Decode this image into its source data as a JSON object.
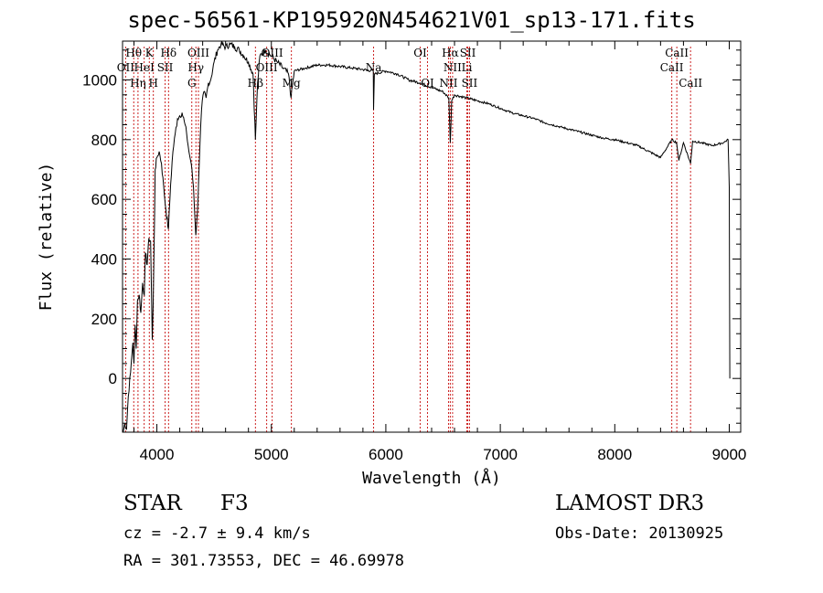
{
  "title": "spec-56561-KP195920N454621V01_sp13-171.fits",
  "info": {
    "class": "STAR",
    "subclass": "F3",
    "survey": "LAMOST DR3",
    "cz": "cz = -2.7 ± 9.4 km/s",
    "obs_date": "Obs-Date: 20130925",
    "radec": "RA = 301.73553, DEC =  46.69978"
  },
  "colors": {
    "spectrum": "#000000",
    "lines": "#cc2222",
    "axes": "#000000"
  },
  "chart_data": {
    "type": "line",
    "title": "spec-56561-KP195920N454621V01_sp13-171.fits",
    "xlabel": "Wavelength (Å)",
    "ylabel": "Flux (relative)",
    "xlim": [
      3700,
      9100
    ],
    "ylim": [
      -180,
      1130
    ],
    "x_ticks": [
      4000,
      5000,
      6000,
      7000,
      8000,
      9000
    ],
    "x_tick_labels": [
      "4000",
      "5000",
      "6000",
      "7000",
      "8000",
      "9000"
    ],
    "y_ticks": [
      0,
      200,
      400,
      600,
      800,
      1000
    ],
    "y_tick_labels": [
      "0",
      "200",
      "400",
      "600",
      "800",
      "1000"
    ],
    "series": [
      {
        "name": "flux",
        "x": [
          3705,
          3720,
          3735,
          3750,
          3770,
          3790,
          3800,
          3810,
          3820,
          3830,
          3845,
          3860,
          3875,
          3890,
          3900,
          3915,
          3930,
          3945,
          3960,
          3968,
          3975,
          3985,
          4000,
          4020,
          4040,
          4060,
          4080,
          4101,
          4120,
          4140,
          4160,
          4180,
          4200,
          4220,
          4240,
          4260,
          4280,
          4300,
          4320,
          4340,
          4355,
          4370,
          4390,
          4410,
          4430,
          4450,
          4470,
          4500,
          4530,
          4560,
          4600,
          4640,
          4680,
          4720,
          4760,
          4800,
          4840,
          4861,
          4880,
          4900,
          4950,
          5000,
          5050,
          5100,
          5150,
          5172,
          5200,
          5300,
          5400,
          5500,
          5600,
          5700,
          5800,
          5890,
          5893,
          5900,
          6000,
          6100,
          6200,
          6300,
          6400,
          6500,
          6550,
          6563,
          6575,
          6600,
          6700,
          6800,
          6900,
          7000,
          7100,
          7200,
          7300,
          7400,
          7500,
          7600,
          7700,
          7800,
          7900,
          8000,
          8100,
          8200,
          8300,
          8400,
          8500,
          8540,
          8560,
          8600,
          8662,
          8680,
          8750,
          8850,
          8950,
          8990,
          9000,
          9005
        ],
        "values": [
          -180,
          -150,
          -170,
          -60,
          20,
          120,
          50,
          180,
          100,
          260,
          280,
          220,
          320,
          280,
          420,
          380,
          470,
          460,
          130,
          250,
          420,
          700,
          740,
          760,
          720,
          640,
          560,
          500,
          650,
          760,
          820,
          870,
          880,
          890,
          860,
          820,
          760,
          720,
          640,
          480,
          560,
          720,
          900,
          960,
          940,
          990,
          1000,
          1060,
          1100,
          1120,
          1110,
          1120,
          1110,
          1100,
          1080,
          1060,
          1020,
          800,
          990,
          1080,
          1100,
          1080,
          1060,
          1040,
          1020,
          940,
          1030,
          1040,
          1050,
          1050,
          1045,
          1040,
          1035,
          1030,
          900,
          1020,
          1030,
          1020,
          1000,
          990,
          975,
          960,
          940,
          790,
          930,
          950,
          940,
          930,
          920,
          905,
          890,
          880,
          870,
          855,
          845,
          835,
          825,
          815,
          805,
          800,
          790,
          780,
          760,
          740,
          800,
          790,
          730,
          790,
          720,
          795,
          790,
          780,
          790,
          800,
          640,
          0
        ]
      }
    ],
    "lines": [
      {
        "name": "Hθ",
        "wave": 3798,
        "row": 1
      },
      {
        "name": "OII",
        "wave": 3727,
        "row": 2
      },
      {
        "name": "Hη",
        "wave": 3835,
        "row": 3
      },
      {
        "name": "HeI",
        "wave": 3889,
        "row": 2
      },
      {
        "name": "K",
        "wave": 3934,
        "row": 1
      },
      {
        "name": "H",
        "wave": 3969,
        "row": 3
      },
      {
        "name": "SII",
        "wave": 4072,
        "row": 2
      },
      {
        "name": "Hδ",
        "wave": 4102,
        "row": 1
      },
      {
        "name": "OIII",
        "wave": 4363,
        "row": 1
      },
      {
        "name": "Hγ",
        "wave": 4341,
        "row": 2
      },
      {
        "name": "G",
        "wave": 4305,
        "row": 3
      },
      {
        "name": "Hβ",
        "wave": 4861,
        "row": 3
      },
      {
        "name": "OIII",
        "wave": 4959,
        "row": 2
      },
      {
        "name": "OIII",
        "wave": 5007,
        "row": 1
      },
      {
        "name": "Mg",
        "wave": 5175,
        "row": 3
      },
      {
        "name": "Na",
        "wave": 5893,
        "row": 2
      },
      {
        "name": "OI",
        "wave": 6300,
        "row": 1
      },
      {
        "name": "OI",
        "wave": 6364,
        "row": 3
      },
      {
        "name": "NII",
        "wave": 6548,
        "row": 3
      },
      {
        "name": "NII",
        "wave": 6583,
        "row": 2
      },
      {
        "name": "Hα",
        "wave": 6563,
        "row": 1
      },
      {
        "name": "SII",
        "wave": 6716,
        "row": 1
      },
      {
        "name": "SII",
        "wave": 6731,
        "row": 3
      },
      {
        "name": "Li",
        "wave": 6708,
        "row": 2
      },
      {
        "name": "CaII",
        "wave": 8542,
        "row": 1
      },
      {
        "name": "CaII",
        "wave": 8498,
        "row": 2
      },
      {
        "name": "CaII",
        "wave": 8662,
        "row": 3
      }
    ]
  }
}
